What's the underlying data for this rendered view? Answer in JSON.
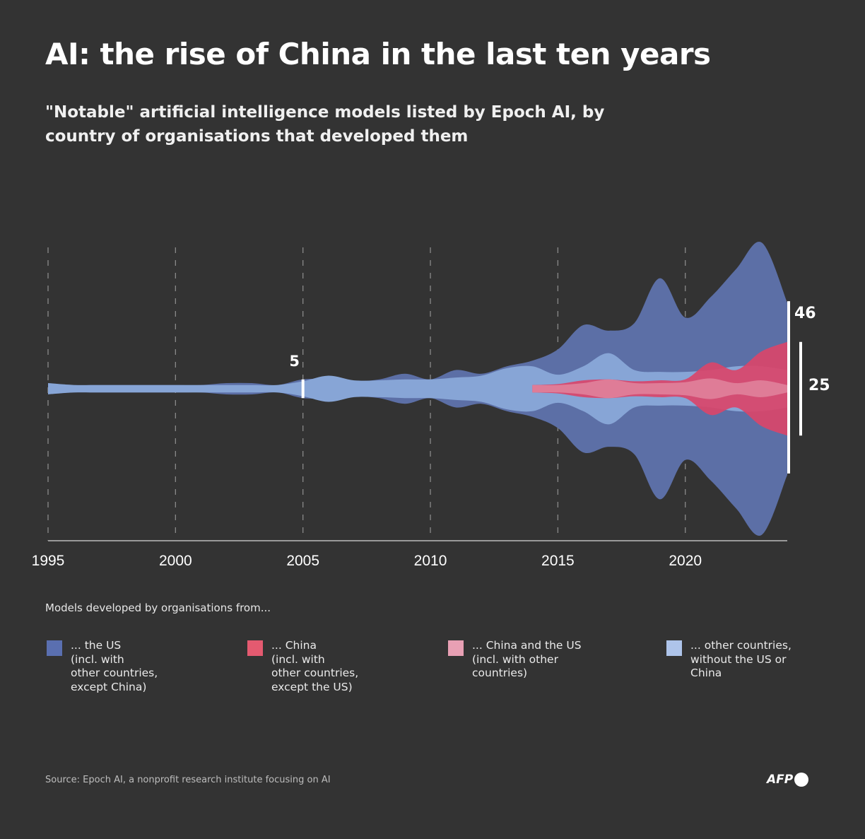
{
  "title": "AI: the rise of China in the last ten years",
  "subtitle": "\"Notable\" artificial intelligence models listed by Epoch AI, by country of organisations that developed them",
  "chart_data": {
    "type": "area",
    "subtype": "streamgraph (centered, overlapping bands)",
    "x": [
      1995,
      1996,
      1997,
      1998,
      1999,
      2000,
      2001,
      2002,
      2003,
      2004,
      2005,
      2006,
      2007,
      2008,
      2009,
      2010,
      2011,
      2012,
      2013,
      2014,
      2015,
      2016,
      2017,
      2018,
      2019,
      2020,
      2021,
      2022,
      2023,
      2024
    ],
    "xlim": [
      1995,
      2024
    ],
    "xticks": [
      "1995",
      "2000",
      "2005",
      "2010",
      "2015",
      "2020"
    ],
    "grid": "vertical dashed",
    "series": [
      {
        "name": "... the US (incl. with other countries, except China)",
        "color": "#5c6fa6",
        "values": [
          3,
          2,
          2,
          2,
          2,
          2,
          2,
          3,
          3,
          2,
          5,
          5,
          4,
          5,
          8,
          5,
          10,
          8,
          12,
          15,
          21,
          34,
          31,
          35,
          59,
          38,
          49,
          64,
          78,
          46
        ]
      },
      {
        "name": "... other countries, without the US or China",
        "color": "#87a5d6",
        "values": [
          3,
          2,
          2,
          2,
          2,
          2,
          2,
          2,
          2,
          2,
          4,
          7,
          4.5,
          4.5,
          5,
          5,
          6,
          7,
          11,
          12,
          7.5,
          12,
          19,
          10,
          9,
          9,
          10,
          12,
          12,
          10
        ]
      },
      {
        "name": "... China (incl. with other countries, except the US)",
        "color": "#d9456a",
        "values": [
          null,
          null,
          null,
          null,
          null,
          null,
          null,
          null,
          null,
          null,
          null,
          null,
          null,
          null,
          null,
          null,
          null,
          null,
          null,
          2,
          2.5,
          4.5,
          5,
          4,
          4.5,
          5,
          14,
          10,
          20,
          25
        ]
      },
      {
        "name": "... China and the US (incl. with other countries)",
        "color": "#e0809a",
        "values": [
          null,
          null,
          null,
          null,
          null,
          null,
          null,
          null,
          null,
          null,
          null,
          null,
          null,
          null,
          null,
          null,
          null,
          null,
          null,
          2,
          2,
          3,
          5,
          3,
          3,
          3.5,
          5.5,
          3,
          4.5,
          2
        ]
      }
    ],
    "annotations": [
      {
        "x": 2005,
        "value": 5,
        "label": "5"
      },
      {
        "x": 2024,
        "value": 46,
        "label": "46"
      },
      {
        "x": 2024,
        "value": 25,
        "label": "25"
      }
    ],
    "legend_title": "Models developed by organisations from...",
    "legend_placement": "bottom"
  },
  "legend": [
    {
      "label": "... the US\n(incl. with\nother countries,\nexcept China)",
      "color": "#5a6fb0"
    },
    {
      "label": "... China\n(incl. with\nother countries,\nexcept the US)",
      "color": "#e45a70"
    },
    {
      "label": "... China and the US\n(incl. with other\ncountries)",
      "color": "#e8a0b4"
    },
    {
      "label": "... other countries,\nwithout the US or\nChina",
      "color": "#aec4ea"
    }
  ],
  "source": "Source: Epoch AI, a nonprofit research institute focusing on AI",
  "logo": "AFP"
}
